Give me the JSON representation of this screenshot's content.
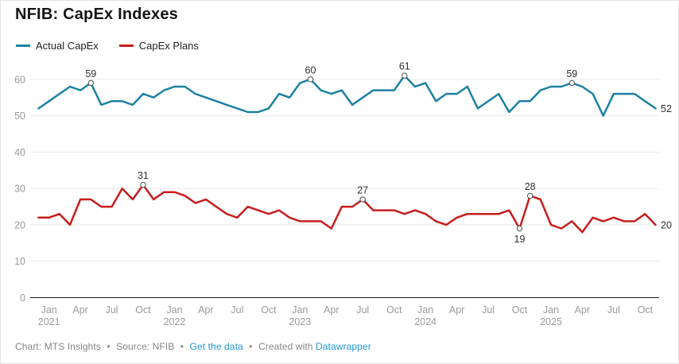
{
  "header": {
    "title": "NFIB: CapEx Indexes"
  },
  "legend": {
    "items": [
      {
        "key": "actual",
        "label": "Actual CapEx"
      },
      {
        "key": "plans",
        "label": "CapEx Plans"
      }
    ]
  },
  "colors": {
    "actual": "#1d81a2",
    "plans": "#c71e1d",
    "grid": "#e8e8e8",
    "axis": "#1a1a1a",
    "axis_text": "#9a9a9a",
    "label_text": "#2e2e2e",
    "marker_stroke": "#4d4d4d",
    "link": "#1e96d0",
    "footer_text": "#858585",
    "title_text": "#151515"
  },
  "chart_data": {
    "type": "line",
    "title": "NFIB: CapEx Indexes",
    "xlabel": "",
    "ylabel": "",
    "ylim": [
      0,
      65
    ],
    "y_ticks": [
      0,
      10,
      20,
      30,
      40,
      50,
      60
    ],
    "grid": "horizontal",
    "legend_position": "top-left",
    "x_range": [
      "Dec 2020",
      "Nov 2025"
    ],
    "months": [
      "Dec 2020",
      "Jan 2021",
      "Feb 2021",
      "Mar 2021",
      "Apr 2021",
      "May 2021",
      "Jun 2021",
      "Jul 2021",
      "Aug 2021",
      "Sep 2021",
      "Oct 2021",
      "Nov 2021",
      "Dec 2021",
      "Jan 2022",
      "Feb 2022",
      "Mar 2022",
      "Apr 2022",
      "May 2022",
      "Jun 2022",
      "Jul 2022",
      "Aug 2022",
      "Sep 2022",
      "Oct 2022",
      "Nov 2022",
      "Dec 2022",
      "Jan 2023",
      "Feb 2023",
      "Mar 2023",
      "Apr 2023",
      "May 2023",
      "Jun 2023",
      "Jul 2023",
      "Aug 2023",
      "Sep 2023",
      "Oct 2023",
      "Nov 2023",
      "Dec 2023",
      "Jan 2024",
      "Feb 2024",
      "Mar 2024",
      "Apr 2024",
      "May 2024",
      "Jun 2024",
      "Jul 2024",
      "Aug 2024",
      "Sep 2024",
      "Oct 2024",
      "Nov 2024",
      "Dec 2024",
      "Jan 2025",
      "Feb 2025",
      "Mar 2025",
      "Apr 2025",
      "May 2025",
      "Jun 2025",
      "Jul 2025",
      "Aug 2025",
      "Sep 2025",
      "Oct 2025",
      "Nov 2025"
    ],
    "series": [
      {
        "key": "actual",
        "name": "Actual CapEx",
        "color": "#1d81a2",
        "values": [
          52,
          54,
          56,
          58,
          57,
          59,
          53,
          54,
          54,
          53,
          56,
          55,
          57,
          58,
          58,
          56,
          55,
          54,
          53,
          52,
          51,
          51,
          52,
          56,
          55,
          59,
          60,
          57,
          56,
          57,
          53,
          55,
          57,
          57,
          57,
          61,
          58,
          59,
          54,
          56,
          56,
          58,
          52,
          54,
          56,
          51,
          54,
          54,
          57,
          58,
          58,
          59,
          58,
          56,
          50,
          56,
          56,
          56,
          54,
          52
        ]
      },
      {
        "key": "plans",
        "name": "CapEx Plans",
        "color": "#c71e1d",
        "values": [
          22,
          22,
          23,
          20,
          27,
          27,
          25,
          25,
          30,
          27,
          31,
          27,
          29,
          29,
          28,
          26,
          27,
          25,
          23,
          22,
          25,
          24,
          23,
          24,
          22,
          21,
          21,
          21,
          19,
          25,
          25,
          27,
          24,
          24,
          24,
          23,
          24,
          23,
          21,
          20,
          22,
          23,
          23,
          23,
          23,
          24,
          19,
          28,
          27,
          20,
          19,
          21,
          18,
          22,
          21,
          22,
          21,
          21,
          23,
          20
        ]
      }
    ],
    "x_ticks": [
      {
        "i": 1,
        "m": "Jan",
        "y": "2021"
      },
      {
        "i": 4,
        "m": "Apr"
      },
      {
        "i": 7,
        "m": "Jul"
      },
      {
        "i": 10,
        "m": "Oct"
      },
      {
        "i": 13,
        "m": "Jan",
        "y": "2022"
      },
      {
        "i": 16,
        "m": "Apr"
      },
      {
        "i": 19,
        "m": "Jul"
      },
      {
        "i": 22,
        "m": "Oct"
      },
      {
        "i": 25,
        "m": "Jan",
        "y": "2023"
      },
      {
        "i": 28,
        "m": "Apr"
      },
      {
        "i": 31,
        "m": "Jul"
      },
      {
        "i": 34,
        "m": "Oct"
      },
      {
        "i": 37,
        "m": "Jan",
        "y": "2024"
      },
      {
        "i": 40,
        "m": "Apr"
      },
      {
        "i": 43,
        "m": "Jul"
      },
      {
        "i": 46,
        "m": "Oct"
      },
      {
        "i": 49,
        "m": "Jan",
        "y": "2025"
      },
      {
        "i": 52,
        "m": "Apr"
      },
      {
        "i": 55,
        "m": "Jul"
      },
      {
        "i": 58,
        "m": "Oct"
      }
    ],
    "annotations": [
      {
        "series": "actual",
        "index": 5,
        "label": "59",
        "position": "above"
      },
      {
        "series": "plans",
        "index": 10,
        "label": "31",
        "position": "above"
      },
      {
        "series": "actual",
        "index": 26,
        "label": "60",
        "position": "above"
      },
      {
        "series": "plans",
        "index": 31,
        "label": "27",
        "position": "above"
      },
      {
        "series": "actual",
        "index": 35,
        "label": "61",
        "position": "above"
      },
      {
        "series": "plans",
        "index": 46,
        "label": "19",
        "position": "below"
      },
      {
        "series": "plans",
        "index": 47,
        "label": "28",
        "position": "above"
      },
      {
        "series": "actual",
        "index": 51,
        "label": "59",
        "position": "above"
      }
    ],
    "end_labels": {
      "actual": "52",
      "plans": "20"
    }
  },
  "footer": {
    "chart_credit": "Chart: MTS Insights",
    "source": "Source: NFIB",
    "get_data_label": "Get the data",
    "created_with": "Created with",
    "datawrapper_label": "Datawrapper",
    "separator": "•"
  }
}
